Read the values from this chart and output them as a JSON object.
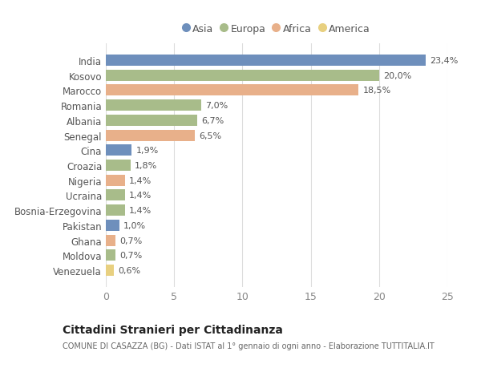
{
  "countries": [
    "India",
    "Kosovo",
    "Marocco",
    "Romania",
    "Albania",
    "Senegal",
    "Cina",
    "Croazia",
    "Nigeria",
    "Ucraina",
    "Bosnia-Erzegovina",
    "Pakistan",
    "Ghana",
    "Moldova",
    "Venezuela"
  ],
  "values": [
    23.4,
    20.0,
    18.5,
    7.0,
    6.7,
    6.5,
    1.9,
    1.8,
    1.4,
    1.4,
    1.4,
    1.0,
    0.7,
    0.7,
    0.6
  ],
  "labels": [
    "23,4%",
    "20,0%",
    "18,5%",
    "7,0%",
    "6,7%",
    "6,5%",
    "1,9%",
    "1,8%",
    "1,4%",
    "1,4%",
    "1,4%",
    "1,0%",
    "0,7%",
    "0,7%",
    "0,6%"
  ],
  "continents": [
    "Asia",
    "Europa",
    "Africa",
    "Europa",
    "Europa",
    "Africa",
    "Asia",
    "Europa",
    "Africa",
    "Europa",
    "Europa",
    "Asia",
    "Africa",
    "Europa",
    "America"
  ],
  "colors": {
    "Asia": "#6e8fbc",
    "Europa": "#a8bc8a",
    "Africa": "#e8b08a",
    "America": "#e8d080"
  },
  "title": "Cittadini Stranieri per Cittadinanza",
  "subtitle": "COMUNE DI CASAZZA (BG) - Dati ISTAT al 1° gennaio di ogni anno - Elaborazione TUTTITALIA.IT",
  "xlim": [
    0,
    25
  ],
  "xticks": [
    0,
    5,
    10,
    15,
    20,
    25
  ],
  "background_color": "#ffffff",
  "grid_color": "#dddddd",
  "legend_order": [
    "Asia",
    "Europa",
    "Africa",
    "America"
  ]
}
